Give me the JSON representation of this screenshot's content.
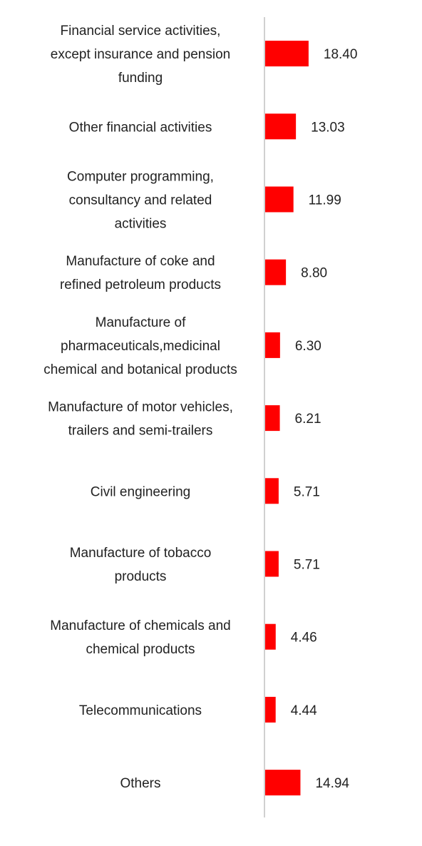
{
  "chart_data": {
    "type": "bar",
    "orientation": "horizontal",
    "categories": [
      [
        "Financial service activities,",
        "except insurance and pension",
        "funding"
      ],
      [
        "Other financial activities"
      ],
      [
        "Computer programming,",
        "consultancy and related",
        "activities"
      ],
      [
        "Manufacture of coke and",
        "refined petroleum products"
      ],
      [
        "Manufacture of",
        "pharmaceuticals,medicinal",
        "chemical and botanical products"
      ],
      [
        "Manufacture of motor vehicles,",
        "trailers and semi-trailers"
      ],
      [
        "Civil engineering"
      ],
      [
        "Manufacture of tobacco",
        "products"
      ],
      [
        "Manufacture of chemicals and",
        "chemical products"
      ],
      [
        "Telecommunications"
      ],
      [
        "Others"
      ]
    ],
    "values": [
      18.4,
      13.03,
      11.99,
      8.8,
      6.3,
      6.21,
      5.71,
      5.71,
      4.46,
      4.44,
      14.94
    ],
    "value_labels": [
      "18.40",
      "13.03",
      "11.99",
      "8.80",
      "6.30",
      "6.21",
      "5.71",
      "5.71",
      "4.46",
      "4.44",
      "14.94"
    ],
    "bar_color": "#ff0000",
    "axis_color": "#d0d0d0",
    "grid": false
  }
}
